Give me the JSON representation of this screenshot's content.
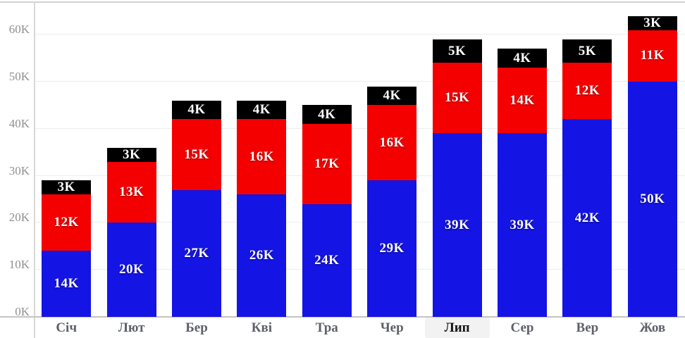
{
  "chart_data": {
    "type": "bar",
    "stacked": true,
    "title": "",
    "xlabel": "",
    "ylabel": "",
    "grid": true,
    "legend": false,
    "ylim": [
      0,
      65
    ],
    "categories": [
      "Січ",
      "Лют",
      "Бер",
      "Кві",
      "Тра",
      "Чер",
      "Лип",
      "Сер",
      "Вер",
      "Жов"
    ],
    "highlighted_category": "Лип",
    "series": [
      {
        "name": "bottom-blue-segment",
        "color": "#1414e4",
        "values": [
          14,
          20,
          27,
          26,
          24,
          29,
          39,
          39,
          42,
          50
        ],
        "labels": [
          "14K",
          "20K",
          "27K",
          "26K",
          "24K",
          "29K",
          "39K",
          "39K",
          "42K",
          "50K"
        ]
      },
      {
        "name": "middle-red-segment",
        "color": "#f40000",
        "values": [
          12,
          13,
          15,
          16,
          17,
          16,
          15,
          14,
          12,
          11
        ],
        "labels": [
          "12K",
          "13K",
          "15K",
          "16K",
          "17K",
          "16K",
          "15K",
          "14K",
          "12K",
          "11K"
        ]
      },
      {
        "name": "top-black-segment",
        "color": "#000000",
        "values": [
          3,
          3,
          4,
          4,
          4,
          4,
          5,
          4,
          5,
          3
        ],
        "labels": [
          "3K",
          "3K",
          "4K",
          "4K",
          "4K",
          "4K",
          "5K",
          "4K",
          "5K",
          "3K"
        ]
      }
    ],
    "y_ticks": [
      {
        "value": 0,
        "label": "0K"
      },
      {
        "value": 10,
        "label": "10K"
      },
      {
        "value": 20,
        "label": "20K"
      },
      {
        "value": 30,
        "label": "30K"
      },
      {
        "value": 40,
        "label": "40K"
      },
      {
        "value": 50,
        "label": "50K"
      },
      {
        "value": 60,
        "label": "60K"
      }
    ]
  },
  "colors": {
    "grid": "#ededed",
    "axis": "#c9c9c9",
    "tick_text": "#8f8f8f",
    "category_text": "#5d6069",
    "highlight_bg": "#f2f2f2",
    "highlight_text": "#141414"
  }
}
